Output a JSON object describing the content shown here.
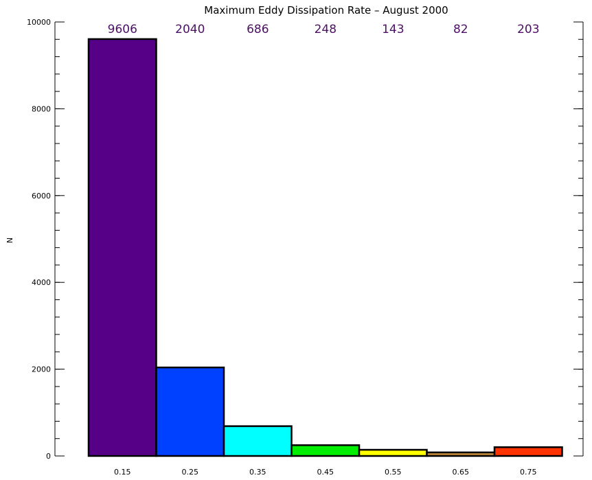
{
  "chart_data": {
    "type": "bar",
    "title": "Maximum Eddy Dissipation Rate  –  August 2000",
    "xlabel": "",
    "ylabel": "N",
    "categories": [
      "0.15",
      "0.25",
      "0.35",
      "0.45",
      "0.55",
      "0.65",
      "0.75"
    ],
    "values": [
      9606,
      2040,
      686,
      248,
      143,
      82,
      203
    ],
    "data_labels": [
      "9606",
      "2040",
      "686",
      "248",
      "143",
      "82",
      "203"
    ],
    "bar_colors": [
      "#560088",
      "#0040ff",
      "#00ffff",
      "#00ee00",
      "#ffff00",
      "#c08a3a",
      "#ff3300"
    ],
    "ylim": [
      0,
      10000
    ],
    "y_ticks": [
      0,
      2000,
      4000,
      6000,
      8000,
      10000
    ],
    "y_tick_labels": [
      "0",
      "2000",
      "4000",
      "6000",
      "8000",
      "10000"
    ],
    "y_minor_tick_step": 400,
    "grid": false,
    "legend": "none"
  }
}
